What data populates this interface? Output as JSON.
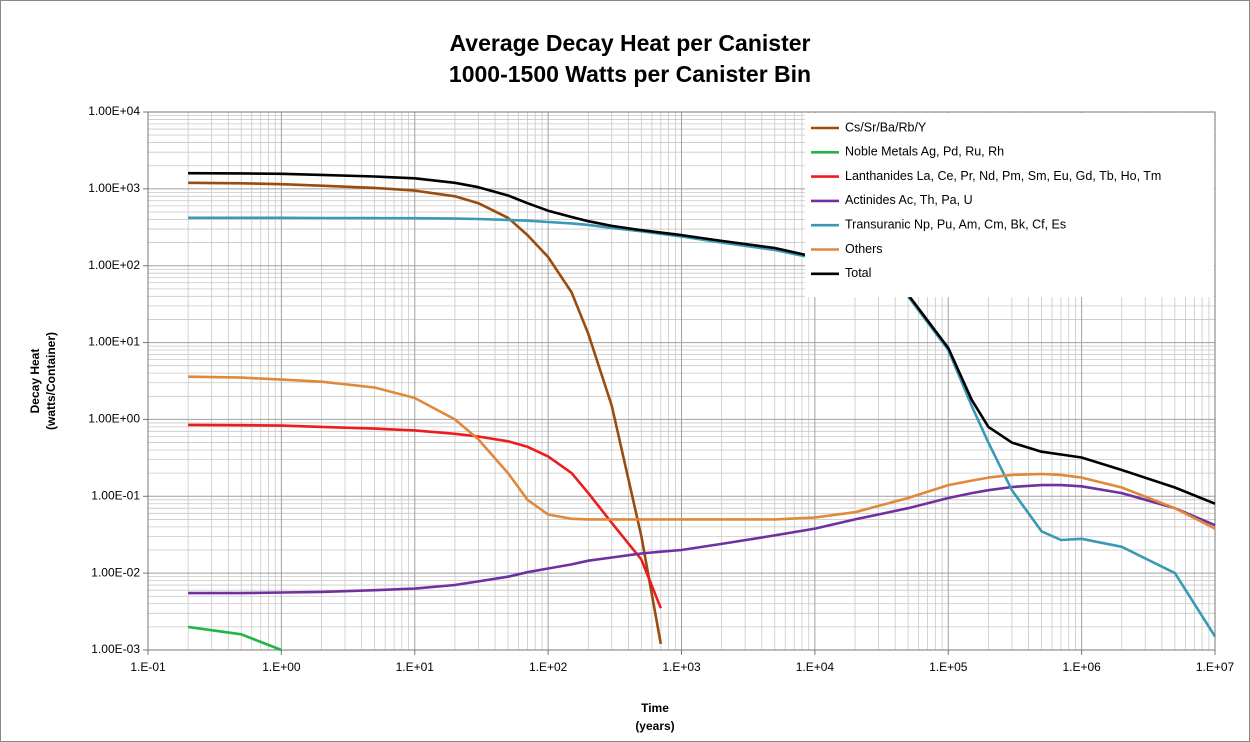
{
  "chart_data": {
    "type": "line",
    "title": "Average Decay Heat per Canister",
    "subtitle": "1000-1500 Watts per Canister Bin",
    "xlabel": [
      "Time",
      "(years)"
    ],
    "ylabel": [
      "Decay Heat",
      "(watts/Container)"
    ],
    "xscale": "log",
    "yscale": "log",
    "grid": true,
    "minor_grid": true,
    "legend": "upper right",
    "xlim": [
      0.1,
      10000000
    ],
    "ylim": [
      0.001,
      10000
    ],
    "xticks": [
      {
        "value": 0.1,
        "label": "1.E-01"
      },
      {
        "value": 1,
        "label": "1.E+00"
      },
      {
        "value": 10,
        "label": "1.E+01"
      },
      {
        "value": 100,
        "label": "1.E+02"
      },
      {
        "value": 1000,
        "label": "1.E+03"
      },
      {
        "value": 10000,
        "label": "1.E+04"
      },
      {
        "value": 100000,
        "label": "1.E+05"
      },
      {
        "value": 1000000,
        "label": "1.E+06"
      },
      {
        "value": 10000000,
        "label": "1.E+07"
      }
    ],
    "yticks": [
      {
        "value": 0.001,
        "label": "1.00E-03"
      },
      {
        "value": 0.01,
        "label": "1.00E-02"
      },
      {
        "value": 0.1,
        "label": "1.00E-01"
      },
      {
        "value": 1,
        "label": "1.00E+00"
      },
      {
        "value": 10,
        "label": "1.00E+01"
      },
      {
        "value": 100,
        "label": "1.00E+02"
      },
      {
        "value": 1000,
        "label": "1.00E+03"
      },
      {
        "value": 10000,
        "label": "1.00E+04"
      }
    ],
    "x": [
      0.2,
      0.5,
      1,
      2,
      5,
      10,
      20,
      30,
      50,
      70,
      100,
      150,
      200,
      300,
      500,
      700,
      1000,
      2000,
      5000,
      10000,
      20000,
      50000,
      100000,
      150000,
      200000,
      300000,
      500000,
      700000,
      1000000,
      2000000,
      5000000,
      10000000
    ],
    "series": [
      {
        "name": "Cs/Sr/Ba/Rb/Y",
        "color": "#994c0f",
        "values": [
          1200,
          1180,
          1150,
          1100,
          1030,
          950,
          800,
          650,
          420,
          250,
          130,
          45,
          13,
          1.5,
          0.03,
          0.0012,
          null,
          null,
          null,
          null,
          null,
          null,
          null,
          null,
          null,
          null,
          null,
          null,
          null,
          null,
          null,
          null
        ]
      },
      {
        "name": "Noble Metals Ag, Pd, Ru, Rh",
        "color": "#22b64a",
        "values": [
          0.002,
          0.0016,
          0.001,
          null,
          null,
          null,
          null,
          null,
          null,
          null,
          null,
          null,
          null,
          null,
          null,
          null,
          null,
          null,
          null,
          null,
          null,
          null,
          null,
          null,
          null,
          null,
          null,
          null,
          null,
          null,
          null,
          null
        ]
      },
      {
        "name": "Lanthanides La, Ce, Pr, Nd, Pm, Sm, Eu, Gd, Tb, Ho, Tm",
        "color": "#ee1c1c",
        "values": [
          0.85,
          0.84,
          0.83,
          0.8,
          0.76,
          0.72,
          0.65,
          0.6,
          0.52,
          0.44,
          0.33,
          0.2,
          0.11,
          0.045,
          0.015,
          0.0035,
          null,
          null,
          null,
          null,
          null,
          null,
          null,
          null,
          null,
          null,
          null,
          null,
          null,
          null,
          null,
          null
        ]
      },
      {
        "name": "Actinides Ac, Th, Pa, U",
        "color": "#7030a0",
        "values": [
          0.0055,
          0.0055,
          0.0056,
          0.0057,
          0.006,
          0.0063,
          0.007,
          0.0078,
          0.009,
          0.0103,
          0.0115,
          0.013,
          0.0145,
          0.016,
          0.018,
          0.019,
          0.02,
          0.024,
          0.031,
          0.038,
          0.05,
          0.07,
          0.095,
          0.11,
          0.12,
          0.132,
          0.14,
          0.14,
          0.135,
          0.11,
          0.07,
          0.042
        ]
      },
      {
        "name": "Transuranic Np, Pu, Am, Cm, Bk, Cf, Es",
        "color": "#3a9ab5",
        "values": [
          420,
          420,
          420,
          418,
          416,
          415,
          410,
          405,
          395,
          385,
          370,
          355,
          340,
          310,
          280,
          260,
          240,
          200,
          160,
          125,
          90,
          40,
          8,
          1.5,
          0.5,
          0.12,
          0.035,
          0.027,
          0.028,
          0.022,
          0.01,
          0.0015
        ]
      },
      {
        "name": "Others",
        "color": "#e0883c",
        "values": [
          3.6,
          3.5,
          3.3,
          3.1,
          2.6,
          1.9,
          1.0,
          0.55,
          0.2,
          0.09,
          0.058,
          0.051,
          0.05,
          0.05,
          0.05,
          0.05,
          0.05,
          0.05,
          0.05,
          0.053,
          0.062,
          0.095,
          0.14,
          0.16,
          0.175,
          0.19,
          0.195,
          0.19,
          0.175,
          0.13,
          0.07,
          0.038
        ]
      },
      {
        "name": "Total",
        "color": "#000000",
        "values": [
          1600,
          1590,
          1570,
          1520,
          1450,
          1370,
          1200,
          1050,
          820,
          650,
          520,
          430,
          380,
          330,
          290,
          270,
          250,
          210,
          170,
          130,
          95,
          42,
          8.5,
          1.8,
          0.8,
          0.5,
          0.38,
          0.35,
          0.32,
          0.22,
          0.13,
          0.08
        ]
      }
    ]
  }
}
